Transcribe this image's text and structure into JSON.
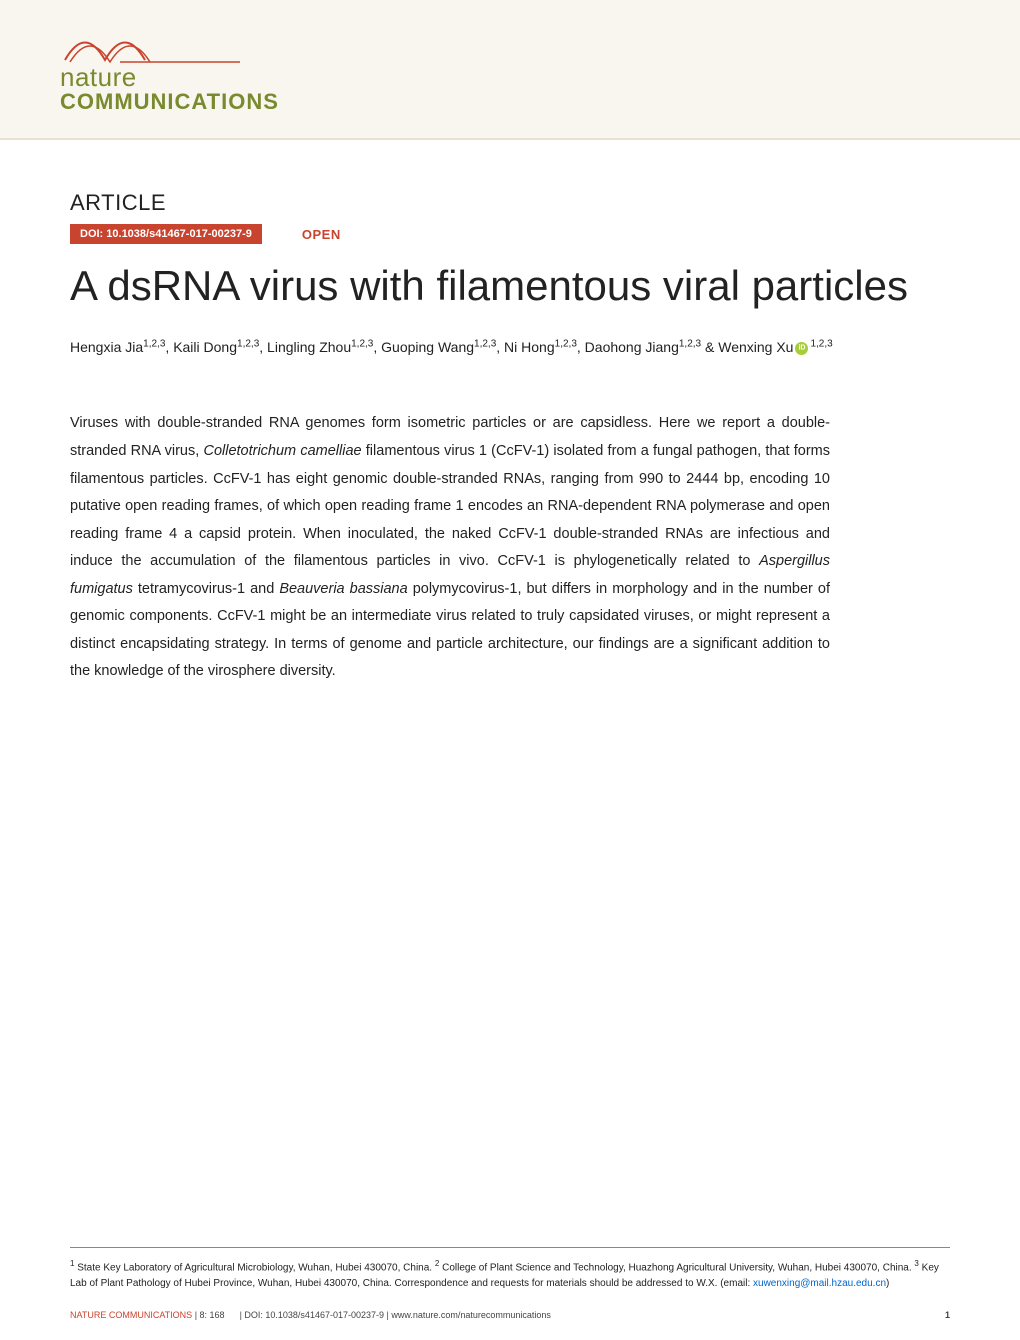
{
  "header": {
    "logo_line1": "nature",
    "logo_line2": "COMMUNICATIONS",
    "wave_colors": [
      "#c8442e",
      "#c8442e",
      "#7a8a2e"
    ],
    "band_bg": "#f9f6f0",
    "brand_color": "#7a8a2e"
  },
  "article": {
    "label": "ARTICLE",
    "doi": "DOI: 10.1038/s41467-017-00237-9",
    "doi_bg": "#c8442e",
    "open_label": "OPEN",
    "open_color": "#c8442e",
    "title": "A dsRNA virus with filamentous viral particles",
    "title_fontsize": 42,
    "title_color": "#222222"
  },
  "authors": {
    "list": [
      {
        "name": "Hengxia Jia",
        "affil": "1,2,3"
      },
      {
        "name": "Kaili Dong",
        "affil": "1,2,3"
      },
      {
        "name": "Lingling Zhou",
        "affil": "1,2,3"
      },
      {
        "name": "Guoping Wang",
        "affil": "1,2,3"
      },
      {
        "name": "Ni Hong",
        "affil": "1,2,3"
      },
      {
        "name": "Daohong Jiang",
        "affil": "1,2,3"
      },
      {
        "name": "Wenxing Xu",
        "affil": "1,2,3",
        "orcid": true,
        "prefix": "& "
      }
    ],
    "fontsize": 14
  },
  "abstract": {
    "text_parts": [
      "Viruses with double-stranded RNA genomes form isometric particles or are capsidless. Here we report a double-stranded RNA virus, ",
      "Colletotrichum camelliae",
      " filamentous virus 1 (CcFV-1) isolated from a fungal pathogen, that forms filamentous particles. CcFV-1 has eight genomic double-stranded RNAs, ranging from 990 to 2444 bp, encoding 10 putative open reading frames, of which open reading frame 1 encodes an RNA-dependent RNA polymerase and open reading frame 4 a capsid protein. When inoculated, the naked CcFV-1 double-stranded RNAs are infectious and induce the accumulation of the filamentous particles in vivo. CcFV-1 is phylogenetically related to ",
      "Aspergillus fumigatus",
      " tetramycovirus-1 and ",
      "Beauveria bassiana",
      " polymycovirus-1, but differs in morphology and in the number of genomic components. CcFV-1 might be an intermediate virus related to truly capsidated viruses, or might represent a distinct encapsidating strategy. In terms of genome and particle architecture, our findings are a significant addition to the knowledge of the virosphere diversity."
    ],
    "fontsize": 14.5,
    "line_height": 1.9
  },
  "affiliations": {
    "items": [
      {
        "num": "1",
        "text": "State Key Laboratory of Agricultural Microbiology, Wuhan, Hubei 430070, China. "
      },
      {
        "num": "2",
        "text": "College of Plant Science and Technology, Huazhong Agricultural University, Wuhan, Hubei 430070, China. "
      },
      {
        "num": "3",
        "text": "Key Lab of Plant Pathology of Hubei Province, Wuhan, Hubei 430070, China. "
      }
    ],
    "correspondence": "Correspondence and requests for materials should be addressed to W.X. (email: ",
    "email": "xuwenxing@mail.hzau.edu.cn",
    "email_color": "#0066cc",
    "closing": ")",
    "fontsize": 10
  },
  "footer": {
    "journal": "NATURE COMMUNICATIONS",
    "citation": "| 8: 168",
    "doi_text": "| DOI: 10.1038/s41467-017-00237-9 | www.nature.com/naturecommunications",
    "page": "1",
    "journal_color": "#c8442e",
    "fontsize": 9
  },
  "colors": {
    "accent_red": "#c8442e",
    "accent_green": "#7a8a2e",
    "text_primary": "#222222",
    "link_blue": "#0066cc",
    "background": "#ffffff",
    "band_bg": "#f9f6f0",
    "orcid_green": "#a6ce39"
  }
}
